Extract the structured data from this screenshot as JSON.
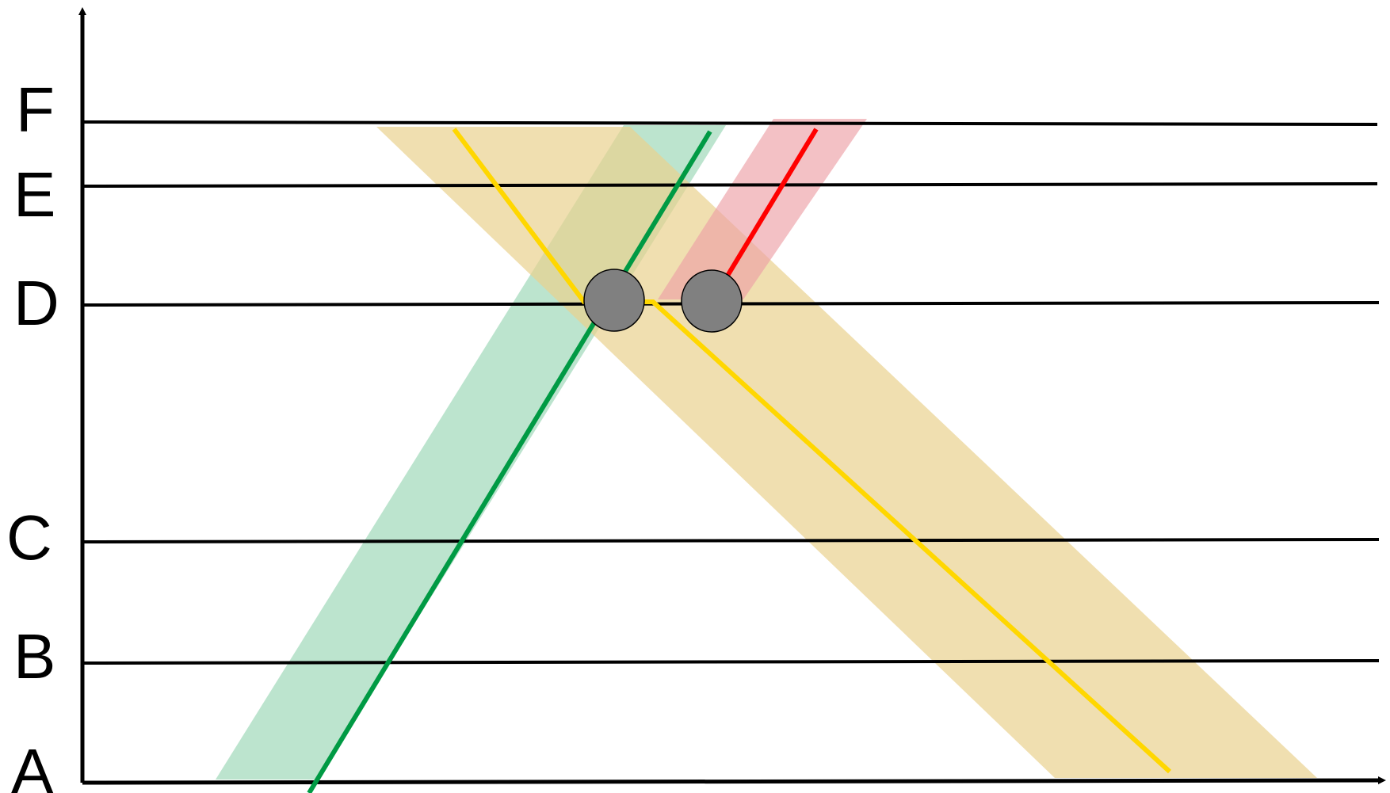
{
  "stops": [
    {
      "id": "A",
      "label": "A"
    },
    {
      "id": "B",
      "label": "B"
    },
    {
      "id": "C",
      "label": "C"
    },
    {
      "id": "D",
      "label": "D"
    },
    {
      "id": "E",
      "label": "E"
    },
    {
      "id": "F",
      "label": "F"
    }
  ],
  "colors": {
    "axis": "#000000",
    "green_line": "#009a44",
    "green_band": "#9fd9b9",
    "yellow_line": "#ffd700",
    "yellow_band": "#e9d28f",
    "red_line": "#ff0000",
    "red_band": "#eca0a6",
    "node_fill": "#808080",
    "node_stroke": "#000000"
  }
}
